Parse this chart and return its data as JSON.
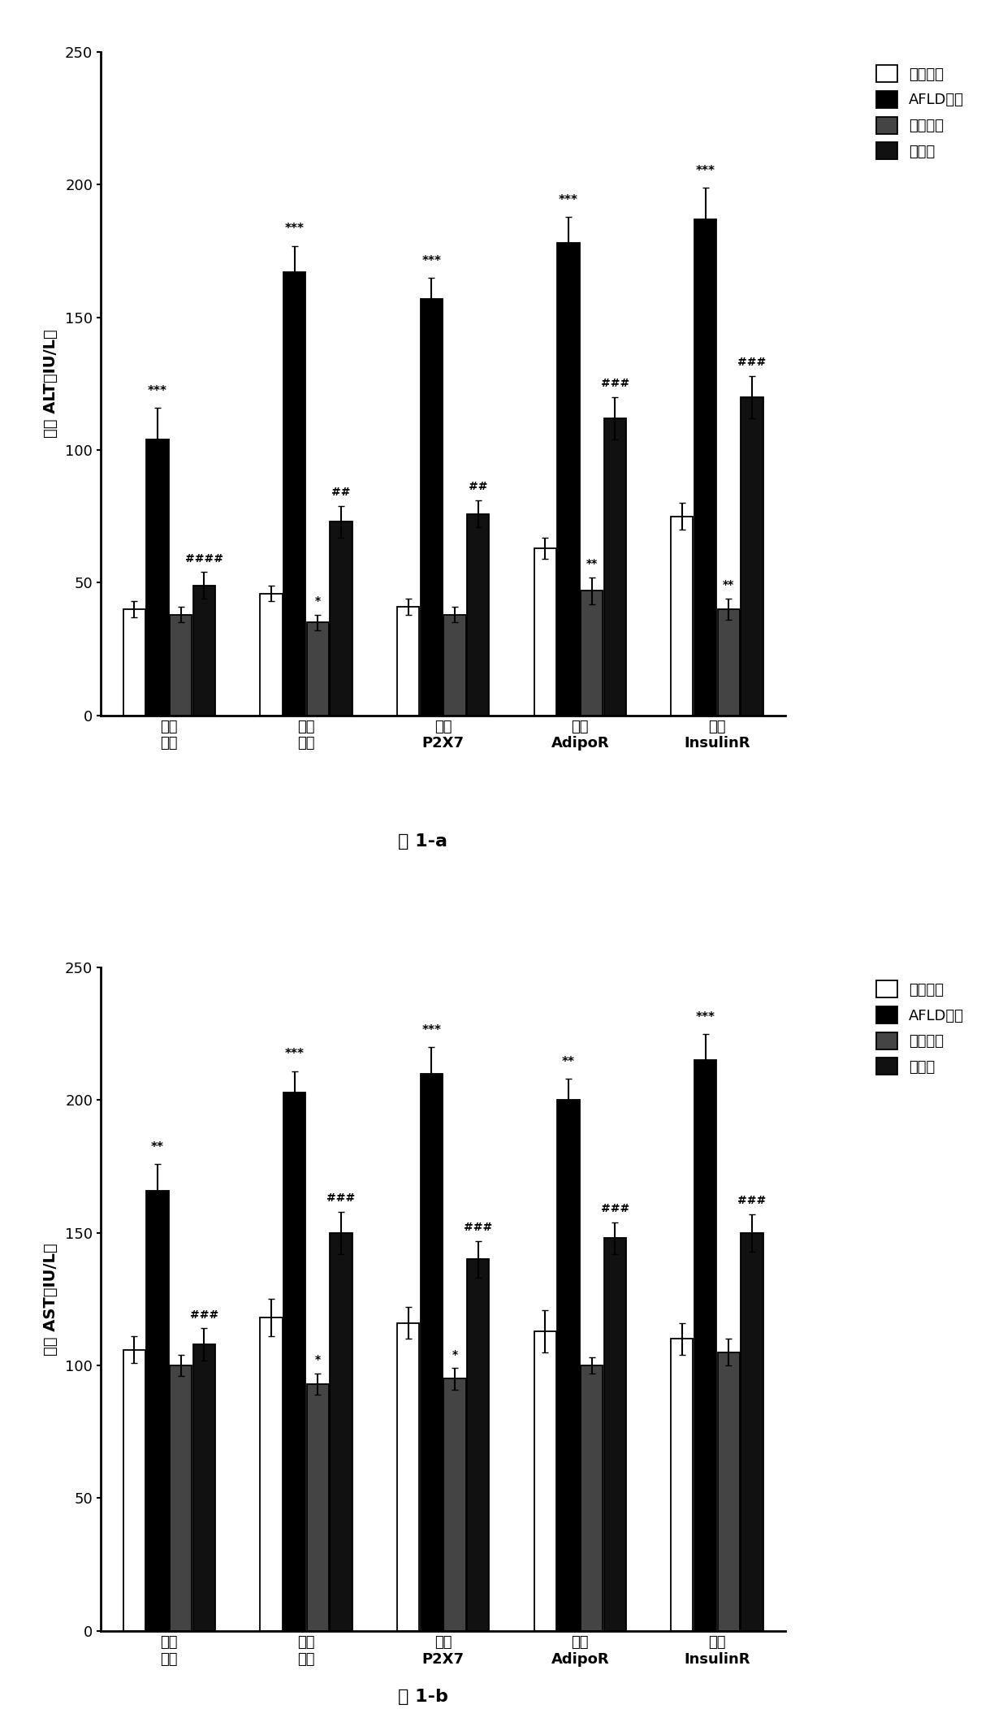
{
  "chart_a": {
    "title": "图 1-a",
    "ylabel": "血清 ALT（IU/L）",
    "ylim": [
      0,
      250
    ],
    "yticks": [
      0,
      50,
      100,
      150,
      200,
      250
    ],
    "groups": [
      "正常\n对照",
      "自噬\n抑制",
      "敲低\nP2X7",
      "敲低\nAdipoR",
      "敲低\nInsulinR"
    ],
    "series": {
      "0_blank": {
        "label": "空白对照",
        "values": [
          40,
          46,
          41,
          63,
          75
        ],
        "errors": [
          3,
          3,
          3,
          4,
          5
        ],
        "color": "white",
        "edgecolor": "black"
      },
      "1_afld": {
        "label": "AFLD模型",
        "values": [
          104,
          167,
          157,
          178,
          187
        ],
        "errors": [
          12,
          10,
          8,
          10,
          12
        ],
        "color": "black",
        "edgecolor": "black"
      },
      "2_positive": {
        "label": "阳性对照",
        "values": [
          38,
          35,
          38,
          47,
          40
        ],
        "errors": [
          3,
          3,
          3,
          5,
          4
        ],
        "color": "#444444",
        "edgecolor": "black"
      },
      "3_treatment": {
        "label": "治疗组",
        "values": [
          49,
          73,
          76,
          112,
          120
        ],
        "errors": [
          5,
          6,
          5,
          8,
          8
        ],
        "color": "#111111",
        "edgecolor": "black"
      }
    },
    "sig_afld": [
      "***",
      "***",
      "***",
      "***",
      "***"
    ],
    "sig_treatment": [
      "####",
      "##",
      "##",
      "###",
      "###"
    ],
    "sig_positive": [
      "",
      "*",
      "",
      "**",
      "**"
    ]
  },
  "chart_b": {
    "title": "图 1-b",
    "ylabel": "血清 AST（IU/L）",
    "ylim": [
      0,
      250
    ],
    "yticks": [
      0,
      50,
      100,
      150,
      200,
      250
    ],
    "groups": [
      "正常\n对照",
      "自噬\n抑制",
      "敲低\nP2X7",
      "敲低\nAdipoR",
      "敲低\nInsulinR"
    ],
    "series": {
      "0_blank": {
        "label": "空白对照",
        "values": [
          106,
          118,
          116,
          113,
          110
        ],
        "errors": [
          5,
          7,
          6,
          8,
          6
        ],
        "color": "white",
        "edgecolor": "black"
      },
      "1_afld": {
        "label": "AFLD模型",
        "values": [
          166,
          203,
          210,
          200,
          215
        ],
        "errors": [
          10,
          8,
          10,
          8,
          10
        ],
        "color": "black",
        "edgecolor": "black"
      },
      "2_positive": {
        "label": "阳性对照",
        "values": [
          100,
          93,
          95,
          100,
          105
        ],
        "errors": [
          4,
          4,
          4,
          3,
          5
        ],
        "color": "#444444",
        "edgecolor": "black"
      },
      "3_treatment": {
        "label": "治疗组",
        "values": [
          108,
          150,
          140,
          148,
          150
        ],
        "errors": [
          6,
          8,
          7,
          6,
          7
        ],
        "color": "#111111",
        "edgecolor": "black"
      }
    },
    "sig_afld": [
      "**",
      "***",
      "***",
      "**",
      "***"
    ],
    "sig_treatment": [
      "###",
      "###",
      "###",
      "###",
      "###"
    ],
    "sig_positive": [
      "",
      "*",
      "*",
      "",
      ""
    ]
  },
  "legend_labels": [
    "空白对照",
    "AFLD模型",
    "阳性对照",
    "治疗组"
  ],
  "legend_colors": [
    "white",
    "black",
    "#444444",
    "#111111"
  ],
  "bar_width": 0.17,
  "background_color": "white",
  "font_size_axis": 14,
  "font_size_tick": 13,
  "font_size_legend": 13,
  "font_size_sig": 11,
  "font_size_caption": 16
}
